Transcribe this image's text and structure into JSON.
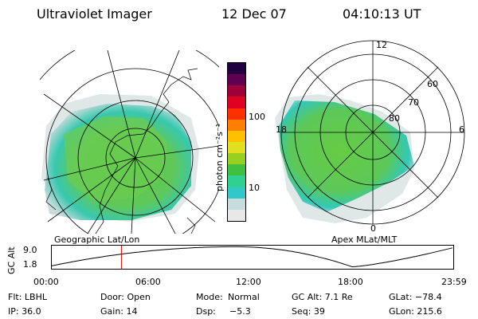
{
  "header": {
    "title": "Ultraviolet Imager",
    "date": "12 Dec 07",
    "time": "04:10:13 UT"
  },
  "panels": {
    "left_label": "Geographic Lat/Lon",
    "right_label": "Apex MLat/MLT",
    "mlt_labels": [
      "12",
      "18",
      "6",
      "0"
    ],
    "mlat_labels": [
      "60",
      "70",
      "80"
    ]
  },
  "colorbar": {
    "label": "photon cm⁻²s⁻¹",
    "ticks": [
      "100",
      "10"
    ],
    "colors": [
      "#e8e8e8",
      "#c8dcdc",
      "#30c8c8",
      "#30d090",
      "#40c040",
      "#98d020",
      "#e0e020",
      "#ffc000",
      "#ff8000",
      "#ff3000",
      "#e00020",
      "#a0003a",
      "#600050",
      "#200040"
    ]
  },
  "gc_alt_plot": {
    "axis_label": "GC Alt",
    "y_top": "9.0",
    "y_bottom": "1.8",
    "x_ticks": [
      "00:00",
      "06:00",
      "12:00",
      "18:00",
      "23:59"
    ],
    "marker_time_hours": 4.17,
    "marker_color": "#e00000"
  },
  "info": {
    "flt": "Flt: LBHL",
    "door": "Door: Open",
    "mode_label": "Mode:",
    "mode_value": "Normal",
    "gc_alt": "GC Alt: 7.1 Re",
    "glat": "GLat: −78.4",
    "ip": "IP: 36.0",
    "gain": "Gain: 14",
    "dsp_label": "Dsp:",
    "dsp_value": "−5.3",
    "seq": "Seq: 39",
    "glon": "GLon: 215.6"
  },
  "palette": {
    "grid": "#000000",
    "marker": "#e00000",
    "light_halo": "#dde6e6"
  }
}
